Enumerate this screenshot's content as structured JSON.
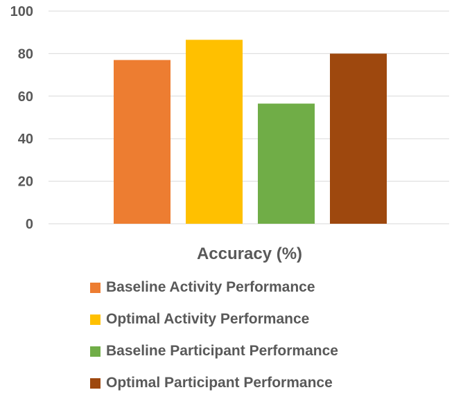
{
  "chart_data": {
    "type": "bar",
    "xlabel": "Accuracy (%)",
    "ylabel": "",
    "ylim": [
      0,
      100
    ],
    "yticks": [
      0,
      20,
      40,
      60,
      80,
      100
    ],
    "grid": true,
    "legend_position": "bottom",
    "series": [
      {
        "name": "Baseline Activity Performance",
        "value": 77,
        "color": "#ED7D31"
      },
      {
        "name": "Optimal Activity Performance",
        "value": 86.5,
        "color": "#FFC000"
      },
      {
        "name": "Baseline Participant Performance",
        "value": 56.5,
        "color": "#70AD47"
      },
      {
        "name": "Optimal Participant Performance",
        "value": 80,
        "color": "#9E480E"
      }
    ]
  }
}
